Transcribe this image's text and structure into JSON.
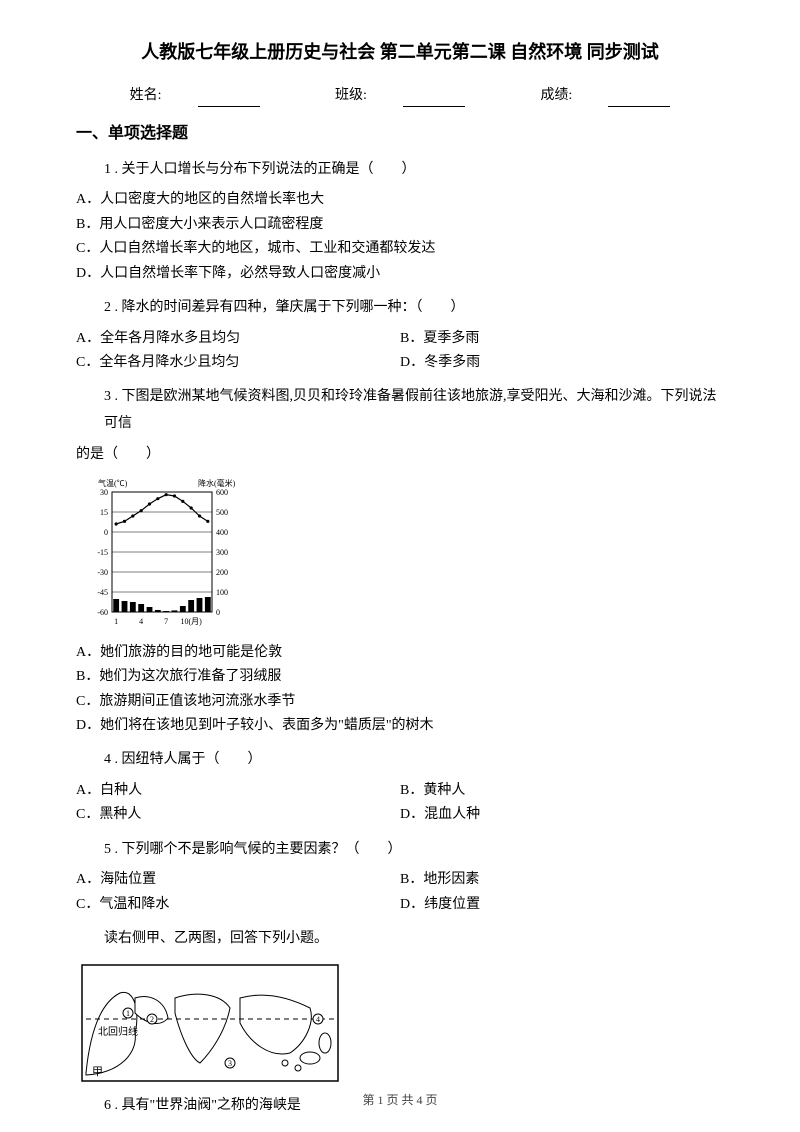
{
  "title": "人教版七年级上册历史与社会 第二单元第二课 自然环境 同步测试",
  "info": {
    "name_label": "姓名:",
    "class_label": "班级:",
    "score_label": "成绩:"
  },
  "section1": "一、单项选择题",
  "q1": {
    "text": "1 . 关于人口增长与分布下列说法的正确是（　　）",
    "a": "A．人口密度大的地区的自然增长率也大",
    "b": "B．用人口密度大小来表示人口疏密程度",
    "c": "C．人口自然增长率大的地区，城市、工业和交通都较发达",
    "d": "D．人口自然增长率下降，必然导致人口密度减小"
  },
  "q2": {
    "text": "2 . 降水的时间差异有四种，肇庆属于下列哪一种：（　　）",
    "a": "A．全年各月降水多且均匀",
    "b": "B．夏季多雨",
    "c": "C．全年各月降水少且均匀",
    "d": "D．冬季多雨"
  },
  "q3": {
    "text": "3 . 下图是欧洲某地气候资料图,贝贝和玲玲准备暑假前往该地旅游,享受阳光、大海和沙滩。下列说法可信",
    "text2": "的是（　　）",
    "a": "A．她们旅游的目的地可能是伦敦",
    "b": "B．她们为这次旅行准备了羽绒服",
    "c": "C．旅游期间正值该地河流涨水季节",
    "d": "D．她们将在该地见到叶子较小、表面多为\"蜡质层\"的树木"
  },
  "chart": {
    "temp_label": "气温(℃)",
    "precip_label": "降水(毫米)",
    "temp_ticks": [
      "30",
      "15",
      "0",
      "-15",
      "-30",
      "-45",
      "-60"
    ],
    "precip_ticks": [
      "600",
      "500",
      "400",
      "300",
      "200",
      "100",
      "0"
    ],
    "x_labels": [
      "1",
      "4",
      "7",
      "10(月)"
    ],
    "temp_values": [
      6,
      8,
      12,
      16,
      21,
      25,
      28,
      27,
      23,
      18,
      12,
      8
    ],
    "precip_values": [
      65,
      55,
      50,
      40,
      25,
      10,
      5,
      8,
      30,
      60,
      70,
      75
    ],
    "bg_color": "#ffffff",
    "axis_color": "#000000",
    "line_color": "#000000",
    "bar_color": "#000000",
    "fontsize": 8
  },
  "q4": {
    "text": "4 . 因纽特人属于（　　）",
    "a": "A．白种人",
    "b": "B．黄种人",
    "c": "C．黑种人",
    "d": "D．混血人种"
  },
  "q5": {
    "text": "5 . 下列哪个不是影响气候的主要因素？（　　）",
    "a": "A．海陆位置",
    "b": "B．地形因素",
    "c": "C．气温和降水",
    "d": "D．纬度位置"
  },
  "map_intro": "读右侧甲、乙两图，回答下列小题。",
  "map": {
    "label_tropic": "北回归线",
    "label_jia": "甲",
    "border_color": "#000000",
    "land_color": "#ffffff",
    "water_shade": "#e0e0e0"
  },
  "q6": {
    "text": "6 . 具有\"世界油阀\"之称的海峡是"
  },
  "pager": "第 1 页 共 4 页"
}
